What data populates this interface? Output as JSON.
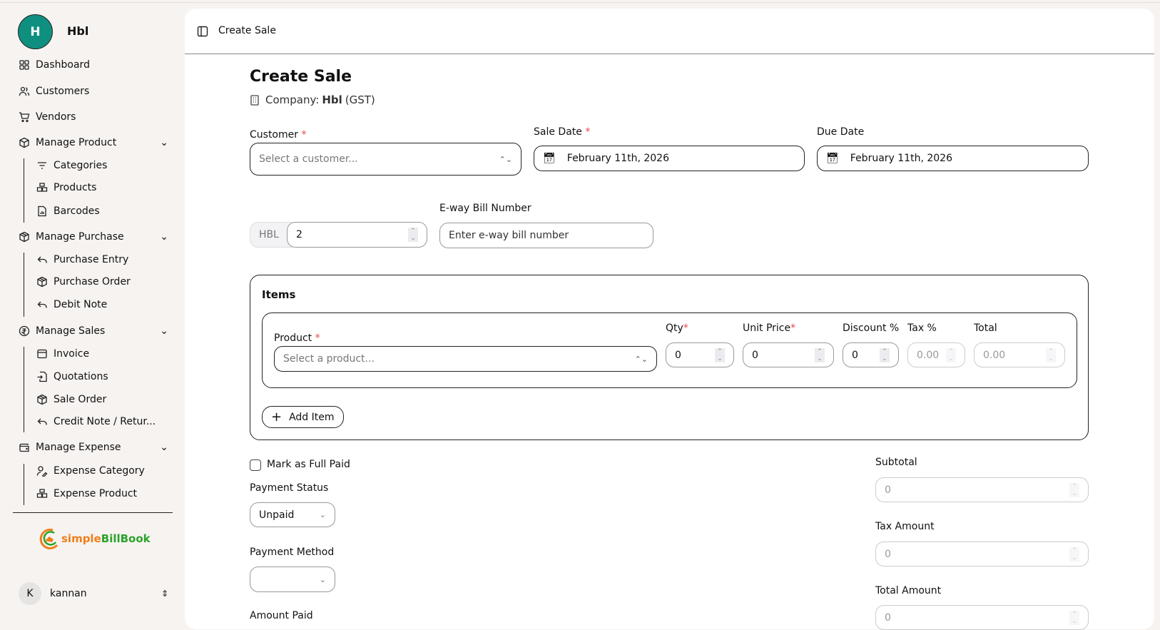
{
  "sidebar": {
    "avatar_letter": "H",
    "company": "Hbl",
    "items": [
      {
        "label": "Dashboard",
        "icon": "dashboard-icon"
      },
      {
        "label": "Customers",
        "icon": "users-icon"
      },
      {
        "label": "Vendors",
        "icon": "cart-icon"
      },
      {
        "label": "Manage Product",
        "icon": "box-icon"
      },
      {
        "label": "Categories",
        "icon": "filter-icon"
      },
      {
        "label": "Products",
        "icon": "boxes-icon"
      },
      {
        "label": "Barcodes",
        "icon": "file-chart-icon"
      },
      {
        "label": "Manage Purchase",
        "icon": "package-icon"
      },
      {
        "label": "Purchase Entry",
        "icon": "undo-icon"
      },
      {
        "label": "Purchase Order",
        "icon": "package-icon"
      },
      {
        "label": "Debit Note",
        "icon": "undo-icon"
      },
      {
        "label": "Manage Sales",
        "icon": "coin-icon"
      },
      {
        "label": "Invoice",
        "icon": "window-icon"
      },
      {
        "label": "Quotations",
        "icon": "file-import-icon"
      },
      {
        "label": "Sale Order",
        "icon": "package-icon"
      },
      {
        "label": "Credit Note / Retur...",
        "icon": "undo-icon"
      },
      {
        "label": "Manage Expense",
        "icon": "wallet-icon"
      },
      {
        "label": "Expense Category",
        "icon": "user-pen-icon"
      },
      {
        "label": "Expense Product",
        "icon": "boxes-icon"
      }
    ],
    "logo_text_a": "simple",
    "logo_text_b": "BillBook",
    "user": {
      "initial": "K",
      "name": "kannan"
    }
  },
  "header": {
    "breadcrumb": "Create Sale"
  },
  "form": {
    "title": "Create Sale",
    "company_prefix": "Company:",
    "company_name": "Hbl",
    "company_suffix": "(GST)",
    "customer_label": "Customer",
    "customer_placeholder": "Select a customer...",
    "sale_date_label": "Sale Date",
    "sale_date": "February 11th, 2026",
    "due_date_label": "Due Date",
    "due_date": "February 11th, 2026",
    "invoice_prefix": "HBL",
    "invoice_number": "2",
    "eway_label": "E-way Bill Number",
    "eway_placeholder": "Enter e-way bill number",
    "items": {
      "title": "Items",
      "product_label": "Product",
      "product_placeholder": "Select a product...",
      "qty_label": "Qty",
      "qty": "0",
      "unit_price_label": "Unit Price",
      "unit_price": "0",
      "discount_label": "Discount %",
      "discount": "0",
      "tax_label": "Tax %",
      "tax": "0.00",
      "total_label": "Total",
      "total": "0.00",
      "add_item": "Add Item"
    },
    "mark_full_paid": "Mark as Full Paid",
    "payment_status_label": "Payment Status",
    "payment_status": "Unpaid",
    "payment_method_label": "Payment Method",
    "payment_method": "",
    "amount_paid_label": "Amount Paid",
    "subtotal_label": "Subtotal",
    "subtotal": "0",
    "tax_amount_label": "Tax Amount",
    "tax_amount": "0",
    "total_amount_label": "Total Amount",
    "total_amount": "0"
  },
  "colors": {
    "avatar": "#0f8f7f",
    "required": "#e5484d",
    "logo_orange": "#f07f1a",
    "logo_green": "#2aa32a"
  }
}
